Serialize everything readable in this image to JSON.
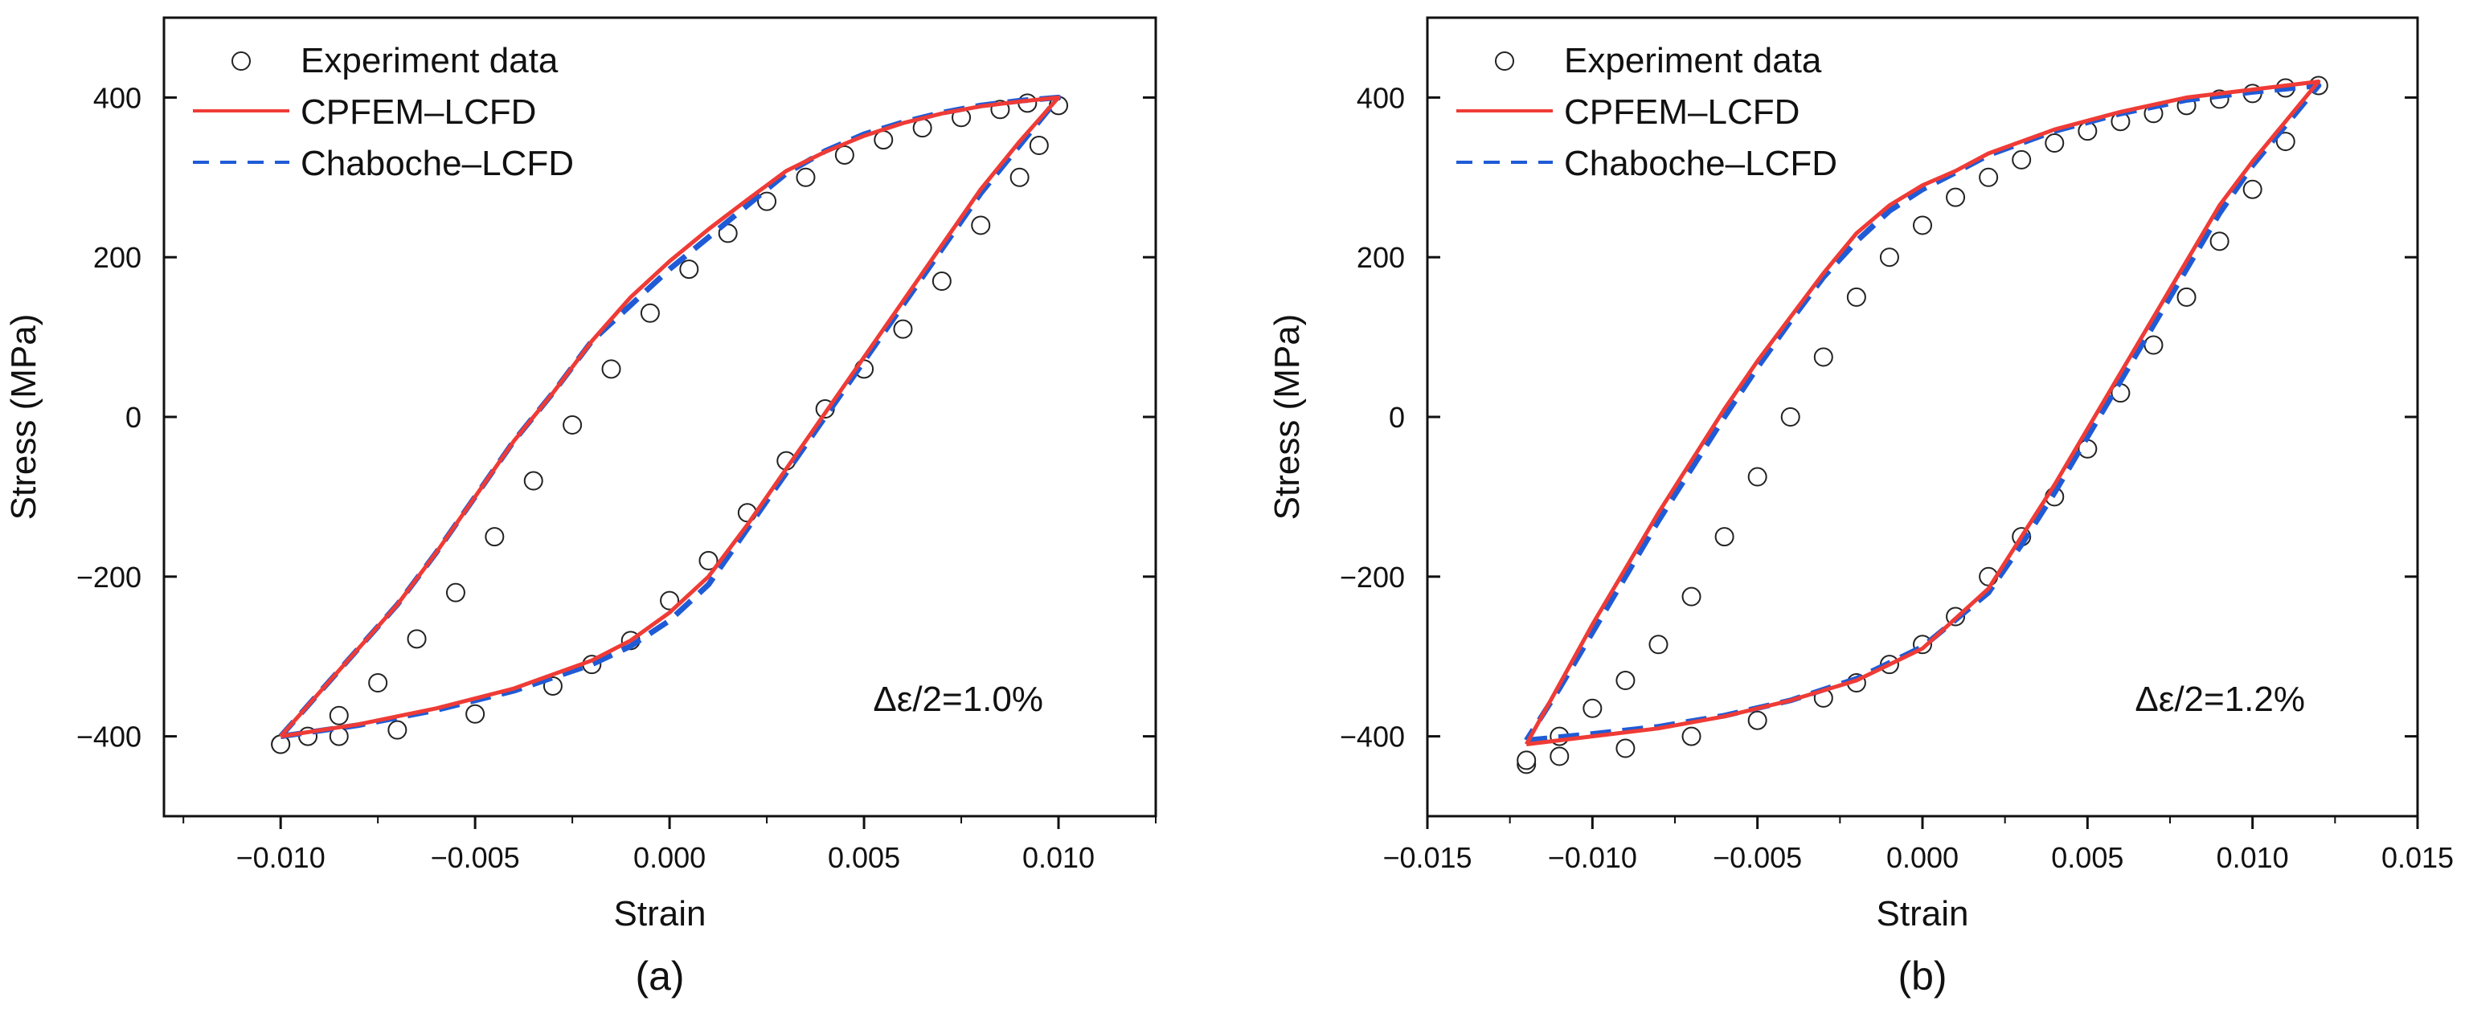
{
  "chart_data": [
    {
      "type": "scatter",
      "panel_label": "(a)",
      "xlabel": "Strain",
      "ylabel": "Stress (MPa)",
      "xlim": [
        -0.013,
        0.0125
      ],
      "ylim": [
        -500,
        500
      ],
      "x_ticks": [
        -0.01,
        -0.005,
        0.0,
        0.005,
        0.01
      ],
      "x_tick_labels": [
        "−0.010",
        "−0.005",
        "0.000",
        "0.005",
        "0.010"
      ],
      "y_ticks": [
        -400,
        -200,
        0,
        200,
        400
      ],
      "y_tick_labels": [
        "−400",
        "−200",
        "0",
        "200",
        "400"
      ],
      "annotation": "Δε/2=1.0%",
      "legend": [
        {
          "label": "Experiment data",
          "style": "circle"
        },
        {
          "label": "CPFEM–LCFD",
          "style": "solid",
          "color": "#ef3b36"
        },
        {
          "label": "Chaboche–LCFD",
          "style": "dashed",
          "color": "#1f5bd6"
        }
      ],
      "series": [
        {
          "name": "Experiment data",
          "x": [
            -0.01,
            -0.0085,
            -0.007,
            -0.005,
            -0.003,
            -0.002,
            -0.001,
            0.0,
            0.001,
            0.002,
            0.003,
            0.004,
            0.005,
            0.006,
            0.007,
            0.008,
            0.009,
            0.0095,
            0.01,
            0.0092,
            0.0085,
            0.0075,
            0.0065,
            0.0055,
            0.0045,
            0.0035,
            0.0025,
            0.0015,
            0.0005,
            -0.0005,
            -0.0015,
            -0.0025,
            -0.0035,
            -0.0045,
            -0.0055,
            -0.0065,
            -0.0075,
            -0.0085,
            -0.0093,
            -0.01
          ],
          "y": [
            -410,
            -400,
            -392,
            -372,
            -337,
            -310,
            -280,
            -230,
            -180,
            -120,
            -55,
            10,
            60,
            110,
            170,
            240,
            300,
            340,
            390,
            393,
            385,
            375,
            362,
            347,
            328,
            300,
            270,
            230,
            185,
            130,
            60,
            -10,
            -80,
            -150,
            -220,
            -278,
            -333,
            -374,
            -400,
            -410
          ]
        },
        {
          "name": "CPFEM–LCFD",
          "x": [
            -0.01,
            -0.008,
            -0.006,
            -0.004,
            -0.002,
            -0.001,
            0.0,
            0.001,
            0.002,
            0.003,
            0.004,
            0.005,
            0.006,
            0.007,
            0.008,
            0.009,
            0.01,
            0.009,
            0.008,
            0.007,
            0.006,
            0.005,
            0.004,
            0.003,
            0.002,
            0.001,
            0.0,
            -0.001,
            -0.002,
            -0.003,
            -0.004,
            -0.005,
            -0.006,
            -0.007,
            -0.008,
            -0.009,
            -0.01
          ],
          "y": [
            -400,
            -385,
            -365,
            -340,
            -305,
            -280,
            -245,
            -200,
            -135,
            -65,
            5,
            75,
            145,
            215,
            285,
            345,
            400,
            395,
            389,
            380,
            368,
            352,
            332,
            308,
            272,
            235,
            195,
            150,
            95,
            30,
            -30,
            -100,
            -170,
            -235,
            -290,
            -345,
            -400
          ]
        },
        {
          "name": "Chaboche–LCFD",
          "x": [
            -0.01,
            -0.008,
            -0.006,
            -0.004,
            -0.002,
            -0.001,
            0.0,
            0.001,
            0.002,
            0.003,
            0.004,
            0.005,
            0.006,
            0.007,
            0.008,
            0.009,
            0.01,
            0.009,
            0.008,
            0.007,
            0.006,
            0.005,
            0.004,
            0.003,
            0.002,
            0.001,
            0.0,
            -0.001,
            -0.002,
            -0.003,
            -0.004,
            -0.005,
            -0.006,
            -0.007,
            -0.008,
            -0.009,
            -0.01
          ],
          "y": [
            -400,
            -386,
            -367,
            -343,
            -310,
            -287,
            -255,
            -210,
            -140,
            -70,
            0,
            70,
            140,
            210,
            280,
            340,
            400,
            396,
            390,
            381,
            369,
            354,
            333,
            305,
            265,
            225,
            185,
            140,
            95,
            30,
            -30,
            -100,
            -170,
            -235,
            -290,
            -345,
            -400
          ]
        }
      ]
    },
    {
      "type": "scatter",
      "panel_label": "(b)",
      "xlabel": "Strain",
      "ylabel": "Stress (MPa)",
      "xlim": [
        -0.015,
        0.015
      ],
      "ylim": [
        -500,
        500
      ],
      "x_ticks": [
        -0.015,
        -0.01,
        -0.005,
        0.0,
        0.005,
        0.01,
        0.015
      ],
      "x_tick_labels": [
        "−0.015",
        "−0.010",
        "−0.005",
        "0.000",
        "0.005",
        "0.010",
        "0.015"
      ],
      "y_ticks": [
        -400,
        -200,
        0,
        200,
        400
      ],
      "y_tick_labels": [
        "−400",
        "−200",
        "0",
        "200",
        "400"
      ],
      "annotation": "Δε/2=1.2%",
      "legend": [
        {
          "label": "Experiment data",
          "style": "circle"
        },
        {
          "label": "CPFEM–LCFD",
          "style": "solid",
          "color": "#ef3b36"
        },
        {
          "label": "Chaboche–LCFD",
          "style": "dashed",
          "color": "#1f5bd6"
        }
      ],
      "series": [
        {
          "name": "Experiment data",
          "x": [
            -0.012,
            -0.011,
            -0.009,
            -0.007,
            -0.005,
            -0.003,
            -0.002,
            -0.001,
            0.0,
            0.001,
            0.002,
            0.003,
            0.004,
            0.005,
            0.006,
            0.007,
            0.008,
            0.009,
            0.01,
            0.011,
            0.012,
            0.011,
            0.01,
            0.009,
            0.008,
            0.007,
            0.006,
            0.005,
            0.004,
            0.003,
            0.002,
            0.001,
            0.0,
            -0.001,
            -0.002,
            -0.003,
            -0.004,
            -0.005,
            -0.006,
            -0.007,
            -0.008,
            -0.009,
            -0.01,
            -0.011,
            -0.012
          ],
          "y": [
            -435,
            -425,
            -415,
            -400,
            -380,
            -352,
            -333,
            -310,
            -285,
            -250,
            -200,
            -150,
            -100,
            -40,
            30,
            90,
            150,
            220,
            285,
            345,
            415,
            412,
            405,
            398,
            390,
            380,
            370,
            358,
            343,
            322,
            300,
            275,
            240,
            200,
            150,
            75,
            0,
            -75,
            -150,
            -225,
            -285,
            -330,
            -365,
            -400,
            -430
          ]
        },
        {
          "name": "CPFEM–LCFD",
          "x": [
            -0.012,
            -0.01,
            -0.008,
            -0.006,
            -0.004,
            -0.002,
            0.0,
            0.002,
            0.003,
            0.004,
            0.005,
            0.006,
            0.007,
            0.008,
            0.009,
            0.01,
            0.011,
            0.012,
            0.01,
            0.008,
            0.006,
            0.004,
            0.002,
            0.001,
            0.0,
            -0.001,
            -0.002,
            -0.003,
            -0.004,
            -0.005,
            -0.006,
            -0.007,
            -0.008,
            -0.009,
            -0.01,
            -0.011,
            -0.012
          ],
          "y": [
            -410,
            -400,
            -390,
            -375,
            -355,
            -330,
            -290,
            -215,
            -150,
            -85,
            -15,
            55,
            125,
            195,
            265,
            320,
            370,
            420,
            410,
            400,
            382,
            360,
            330,
            308,
            290,
            265,
            230,
            180,
            125,
            70,
            10,
            -55,
            -120,
            -190,
            -260,
            -335,
            -410
          ]
        },
        {
          "name": "Chaboche–LCFD",
          "x": [
            -0.012,
            -0.01,
            -0.008,
            -0.006,
            -0.004,
            -0.002,
            0.0,
            0.002,
            0.003,
            0.004,
            0.005,
            0.006,
            0.007,
            0.008,
            0.009,
            0.01,
            0.011,
            0.012,
            0.01,
            0.008,
            0.006,
            0.004,
            0.002,
            0.001,
            0.0,
            -0.001,
            -0.002,
            -0.003,
            -0.004,
            -0.005,
            -0.006,
            -0.007,
            -0.008,
            -0.009,
            -0.01,
            -0.011,
            -0.012
          ],
          "y": [
            -405,
            -397,
            -388,
            -374,
            -355,
            -328,
            -288,
            -220,
            -160,
            -95,
            -25,
            45,
            115,
            185,
            255,
            315,
            365,
            415,
            407,
            397,
            380,
            358,
            328,
            306,
            285,
            258,
            220,
            175,
            120,
            62,
            0,
            -65,
            -130,
            -200,
            -270,
            -340,
            -405
          ]
        }
      ]
    }
  ]
}
